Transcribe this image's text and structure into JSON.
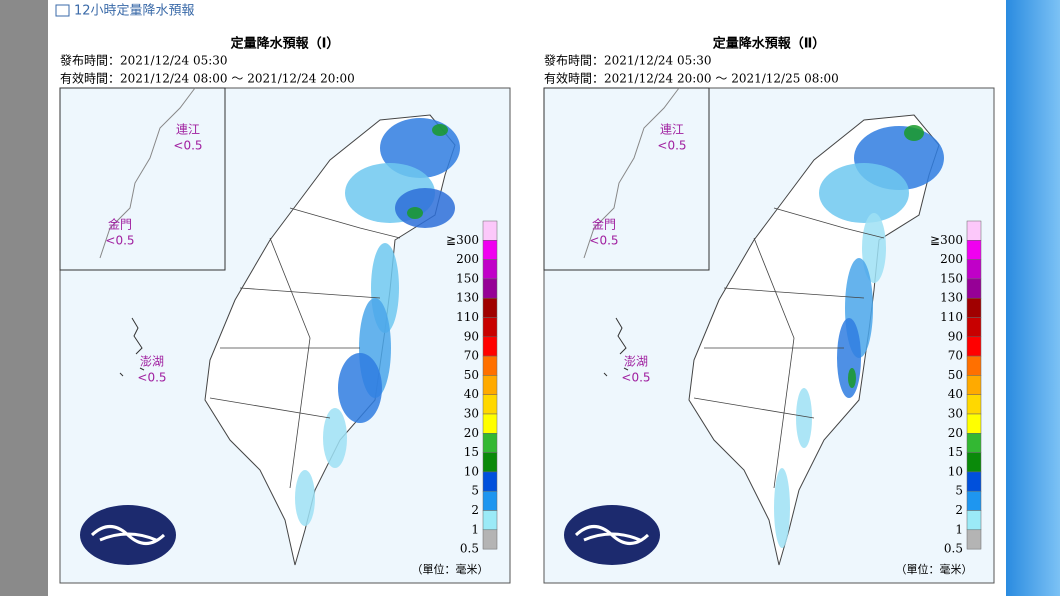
{
  "header": {
    "title": "12小時定量降水預報"
  },
  "maps": [
    {
      "title": "定量降水預報（Ⅰ）",
      "issued": "發布時間：2021/12/24 05:30",
      "valid": "有效時間：2021/12/24 08:00 ～ 2021/12/24 20:00",
      "islands": [
        {
          "name": "連江",
          "value": "<0.5"
        },
        {
          "name": "金門",
          "value": "<0.5"
        },
        {
          "name": "澎湖",
          "value": "<0.5"
        }
      ],
      "unit": "（單位：毫米）"
    },
    {
      "title": "定量降水預報（Ⅱ）",
      "issued": "發布時間：2021/12/24 05:30",
      "valid": "有效時間：2021/12/24 20:00 ～ 2021/12/25 08:00",
      "islands": [
        {
          "name": "連江",
          "value": "<0.5"
        },
        {
          "name": "金門",
          "value": "<0.5"
        },
        {
          "name": "澎湖",
          "value": "<0.5"
        }
      ],
      "unit": "（單位：毫米）"
    }
  ],
  "legend": {
    "labels": [
      "≧300",
      "200",
      "150",
      "130",
      "110",
      "90",
      "70",
      "50",
      "40",
      "30",
      "20",
      "15",
      "10",
      "5",
      "2",
      "1",
      "0.5"
    ],
    "colors": [
      "#fcc8fa",
      "#f000f0",
      "#c000c8",
      "#960096",
      "#a00000",
      "#c80000",
      "#ff0000",
      "#ff7000",
      "#ffaa00",
      "#ffd800",
      "#ffff00",
      "#33b833",
      "#0a8a0a",
      "#0050dc",
      "#1e96f0",
      "#9beaf7",
      "#b4b4b4"
    ]
  }
}
